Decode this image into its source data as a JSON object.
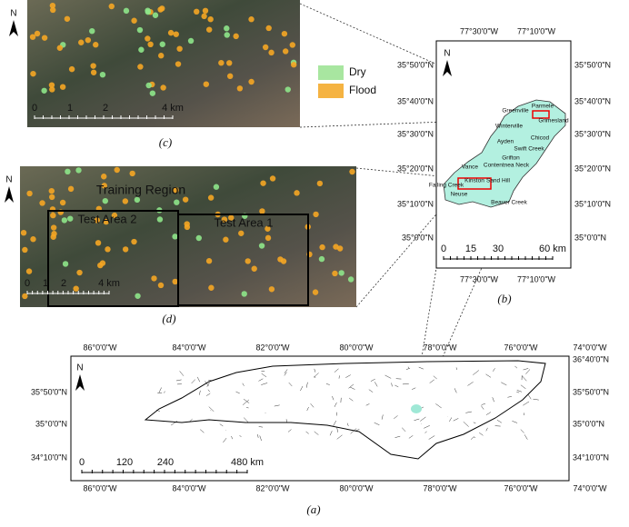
{
  "north": "N",
  "legend": {
    "items": [
      "Dry",
      "Flood"
    ]
  },
  "panel_c": {
    "label": "(c)",
    "scale": [
      "0",
      "1",
      "2",
      "4 km"
    ]
  },
  "panel_d": {
    "label": "(d)",
    "regions": [
      "Training Region",
      "Test Area 2",
      "Test Area 1"
    ],
    "scale": [
      "0",
      "1",
      "2",
      "4 km"
    ]
  },
  "panel_b": {
    "label": "(b)",
    "top_lon": [
      "77°30'0\"W",
      "77°10'0\"W"
    ],
    "bottom_lon": [
      "77°30'0\"W",
      "77°10'0\"W"
    ],
    "left_lat": [
      "35°50'0\"N",
      "35°40'0\"N",
      "35°30'0\"N",
      "35°20'0\"N",
      "35°10'0\"N",
      "35°0'0\"N"
    ],
    "right_lat": [
      "35°50'0\"N",
      "35°40'0\"N",
      "35°30'0\"N",
      "35°20'0\"N",
      "35°10'0\"N",
      "35°0'0\"N"
    ],
    "places": [
      "Parmele",
      "Greenville",
      "Grimesland",
      "Winterville",
      "Chicod",
      "Ayden",
      "Swift Creek",
      "Grifton",
      "Contentnea Neck",
      "Vance",
      "Kinston",
      "Sand Hill",
      "Falling Creek",
      "Neuse",
      "Beaver Creek"
    ],
    "scale": [
      "0",
      "15",
      "30",
      "60 km"
    ]
  },
  "panel_a": {
    "label": "(a)",
    "top_lon": [
      "86°0'0\"W",
      "84°0'0\"W",
      "82°0'0\"W",
      "80°0'0\"W",
      "78°0'0\"W",
      "76°0'0\"W",
      "74°0'0\"W"
    ],
    "bottom_lon": [
      "86°0'0\"W",
      "84°0'0\"W",
      "82°0'0\"W",
      "80°0'0\"W",
      "78°0'0\"W",
      "76°0'0\"W",
      "74°0'0\"W"
    ],
    "left_lat": [
      "35°50'0\"N",
      "35°0'0\"N",
      "34°10'0\"N"
    ],
    "right_lat": [
      "36°40'0\"N",
      "35°50'0\"N",
      "35°0'0\"N",
      "34°10'0\"N"
    ],
    "scale": [
      "0",
      "120",
      "240",
      "480 km"
    ]
  }
}
